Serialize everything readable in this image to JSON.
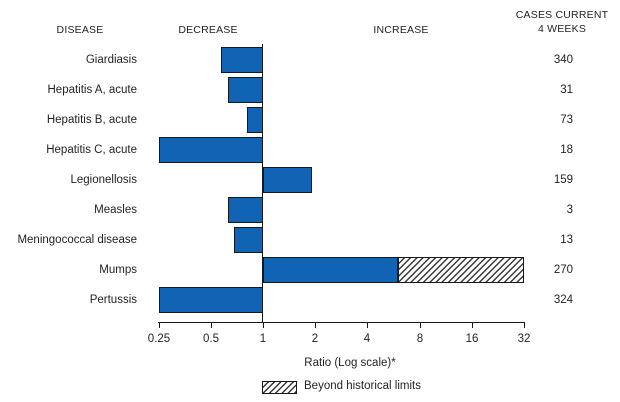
{
  "header": {
    "disease": "DISEASE",
    "decrease": "DECREASE",
    "increase": "INCREASE",
    "cases_line1": "CASES CURRENT",
    "cases_line2": "4 WEEKS"
  },
  "chart_data": {
    "type": "bar",
    "orientation": "horizontal",
    "scale": "log2",
    "baseline_value": 1,
    "x_ticks": [
      "0.25",
      "0.5",
      "1",
      "2",
      "4",
      "8",
      "16",
      "32"
    ],
    "x_tick_values": [
      0.25,
      0.5,
      1,
      2,
      4,
      8,
      16,
      32
    ],
    "xlim": [
      0.25,
      32
    ],
    "xlabel": "Ratio (Log scale)*",
    "legend": [
      {
        "label": "Beyond historical limits",
        "style": "hatched"
      }
    ],
    "rows": [
      {
        "disease": "Giardiasis",
        "ratio": 0.57,
        "cases": 340
      },
      {
        "disease": "Hepatitis A, acute",
        "ratio": 0.63,
        "cases": 31
      },
      {
        "disease": "Hepatitis B, acute",
        "ratio": 0.81,
        "cases": 73
      },
      {
        "disease": "Hepatitis C, acute",
        "ratio": 0.25,
        "cases": 18
      },
      {
        "disease": "Legionellosis",
        "ratio": 1.92,
        "cases": 159
      },
      {
        "disease": "Measles",
        "ratio": 0.63,
        "cases": 3
      },
      {
        "disease": "Meningococcal disease",
        "ratio": 0.68,
        "cases": 13
      },
      {
        "disease": "Mumps",
        "ratio": 32,
        "beyond_start": 6,
        "cases": 270
      },
      {
        "disease": "Pertussis",
        "ratio": 0.25,
        "cases": 324
      }
    ],
    "colors": {
      "bar_fill": "#1164b4",
      "bar_border": "#16191c",
      "text": "#231f20",
      "background": "#ffffff"
    }
  }
}
